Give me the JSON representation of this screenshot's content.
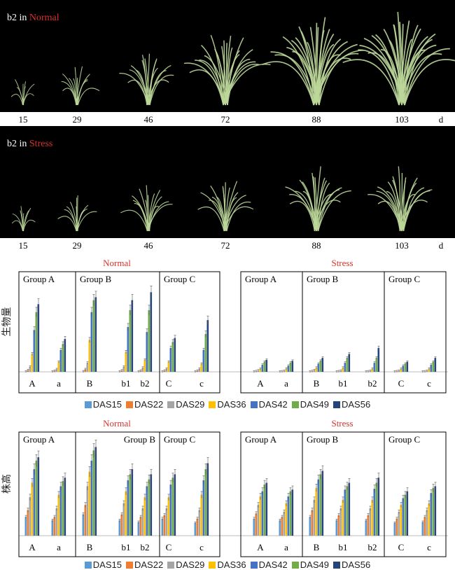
{
  "photos": {
    "normal": {
      "prefix": "b2 in",
      "condition": "Normal"
    },
    "stress": {
      "prefix": "b2 in",
      "condition": "Stress"
    },
    "days": [
      "15",
      "29",
      "46",
      "72",
      "88",
      "103"
    ],
    "unit": "d",
    "plant_size_normal": [
      0.15,
      0.3,
      0.5,
      0.75,
      0.95,
      1.0
    ],
    "plant_size_stress": [
      0.14,
      0.25,
      0.4,
      0.48,
      0.62,
      0.62
    ]
  },
  "colors": {
    "background_panel": "#000000",
    "condition_red": "#d9322b",
    "plant_green": "#bcd79a"
  },
  "chart_data": [
    {
      "type": "bar",
      "title_normal": "Normal",
      "title_stress": "Stress",
      "ylabel": "生物量",
      "groups": [
        "Group A",
        "Group B",
        "Group C"
      ],
      "categories": [
        "A",
        "a",
        "B",
        "b1",
        "b2",
        "C",
        "c"
      ],
      "series": [
        {
          "name": "DAS15",
          "color": "#5b9bd5",
          "normal": [
            0.2,
            0.2,
            0.3,
            0.2,
            0.2,
            0.2,
            0.2
          ],
          "stress": [
            0.1,
            0.1,
            0.1,
            0.1,
            0.1,
            0.1,
            0.1
          ]
        },
        {
          "name": "DAS22",
          "color": "#ed7d31",
          "normal": [
            1.5,
            0.8,
            2.5,
            1.2,
            1.0,
            1.0,
            1.0
          ],
          "stress": [
            0.5,
            0.3,
            0.6,
            0.4,
            0.3,
            0.4,
            0.3
          ]
        },
        {
          "name": "DAS29",
          "color": "#a5a5a5",
          "normal": [
            5,
            2.5,
            9,
            5,
            4,
            3,
            3
          ],
          "stress": [
            1.2,
            0.8,
            1.5,
            1.0,
            0.8,
            0.9,
            0.8
          ]
        },
        {
          "name": "DAS36",
          "color": "#ffc000",
          "normal": [
            18,
            10,
            32,
            20,
            12,
            10,
            8
          ],
          "stress": [
            3,
            3,
            4,
            4,
            3,
            3,
            3
          ]
        },
        {
          "name": "DAS42",
          "color": "#4472c4",
          "normal": [
            42,
            22,
            60,
            45,
            40,
            24,
            22
          ],
          "stress": [
            7,
            6,
            8,
            9,
            9,
            6,
            7
          ]
        },
        {
          "name": "DAS49",
          "color": "#70ad47",
          "normal": [
            60,
            28,
            72,
            62,
            62,
            30,
            38
          ],
          "stress": [
            10,
            9,
            11,
            14,
            14,
            8,
            10
          ]
        },
        {
          "name": "DAS56",
          "color": "#264478",
          "normal": [
            68,
            33,
            75,
            72,
            80,
            34,
            52
          ],
          "stress": [
            12,
            11,
            14,
            18,
            24,
            10,
            14
          ]
        }
      ],
      "ylim": [
        0,
        95
      ]
    },
    {
      "type": "bar",
      "title_normal": "Normal",
      "title_stress": "Stress",
      "ylabel": "株高",
      "groups": [
        "Group A",
        "Group B",
        "Group C"
      ],
      "categories": [
        "A",
        "a",
        "B",
        "b1",
        "b2",
        "C",
        "c"
      ],
      "series": [
        {
          "name": "DAS15",
          "color": "#5b9bd5",
          "normal": [
            22,
            18,
            25,
            18,
            16,
            20,
            15
          ],
          "stress": [
            20,
            18,
            22,
            18,
            18,
            15,
            16
          ]
        },
        {
          "name": "DAS22",
          "color": "#ed7d31",
          "normal": [
            30,
            22,
            36,
            25,
            22,
            24,
            20
          ],
          "stress": [
            26,
            22,
            30,
            24,
            24,
            20,
            22
          ]
        },
        {
          "name": "DAS29",
          "color": "#a5a5a5",
          "normal": [
            45,
            32,
            58,
            38,
            32,
            32,
            30
          ],
          "stress": [
            36,
            28,
            42,
            32,
            32,
            28,
            30
          ]
        },
        {
          "name": "DAS36",
          "color": "#ffc000",
          "normal": [
            62,
            48,
            75,
            52,
            45,
            45,
            48
          ],
          "stress": [
            46,
            38,
            56,
            42,
            42,
            36,
            38
          ]
        },
        {
          "name": "DAS42",
          "color": "#4472c4",
          "normal": [
            78,
            58,
            88,
            65,
            58,
            60,
            65
          ],
          "stress": [
            52,
            46,
            66,
            54,
            55,
            44,
            50
          ]
        },
        {
          "name": "DAS49",
          "color": "#70ad47",
          "normal": [
            88,
            64,
            100,
            72,
            66,
            68,
            78
          ],
          "stress": [
            60,
            52,
            72,
            58,
            62,
            48,
            56
          ]
        },
        {
          "name": "DAS56",
          "color": "#264478",
          "normal": [
            92,
            68,
            104,
            78,
            72,
            72,
            85
          ],
          "stress": [
            62,
            54,
            76,
            62,
            68,
            52,
            58
          ]
        }
      ],
      "ylim": [
        0,
        115
      ]
    }
  ]
}
